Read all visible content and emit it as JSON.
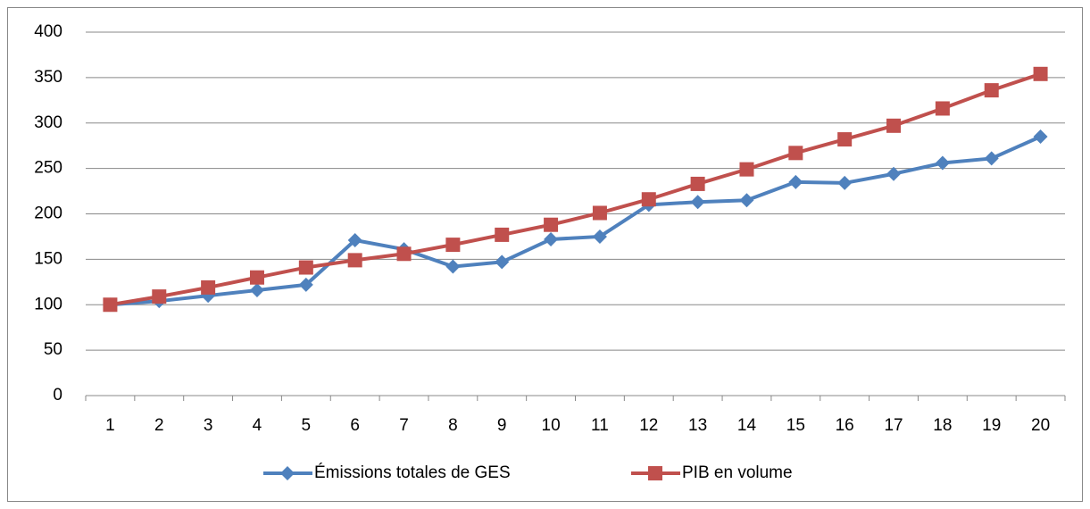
{
  "chart_data": {
    "type": "line",
    "categories": [
      1,
      2,
      3,
      4,
      5,
      6,
      7,
      8,
      9,
      10,
      11,
      12,
      13,
      14,
      15,
      16,
      17,
      18,
      19,
      20
    ],
    "series": [
      {
        "name": "Émissions totales de GES",
        "color": "#4f81bd",
        "marker": "diamond",
        "values": [
          100,
          104,
          110,
          116,
          122,
          171,
          161,
          142,
          147,
          172,
          175,
          210,
          213,
          215,
          235,
          234,
          244,
          256,
          261,
          285
        ]
      },
      {
        "name": "PIB en volume",
        "color": "#c0504d",
        "marker": "square",
        "values": [
          100,
          109,
          119,
          130,
          141,
          149,
          156,
          166,
          177,
          188,
          201,
          216,
          233,
          249,
          267,
          282,
          297,
          316,
          336,
          354
        ]
      }
    ],
    "ylim": [
      0,
      400
    ],
    "yticks": [
      0,
      50,
      100,
      150,
      200,
      250,
      300,
      350,
      400
    ],
    "grid": true,
    "legend": "bottom"
  }
}
